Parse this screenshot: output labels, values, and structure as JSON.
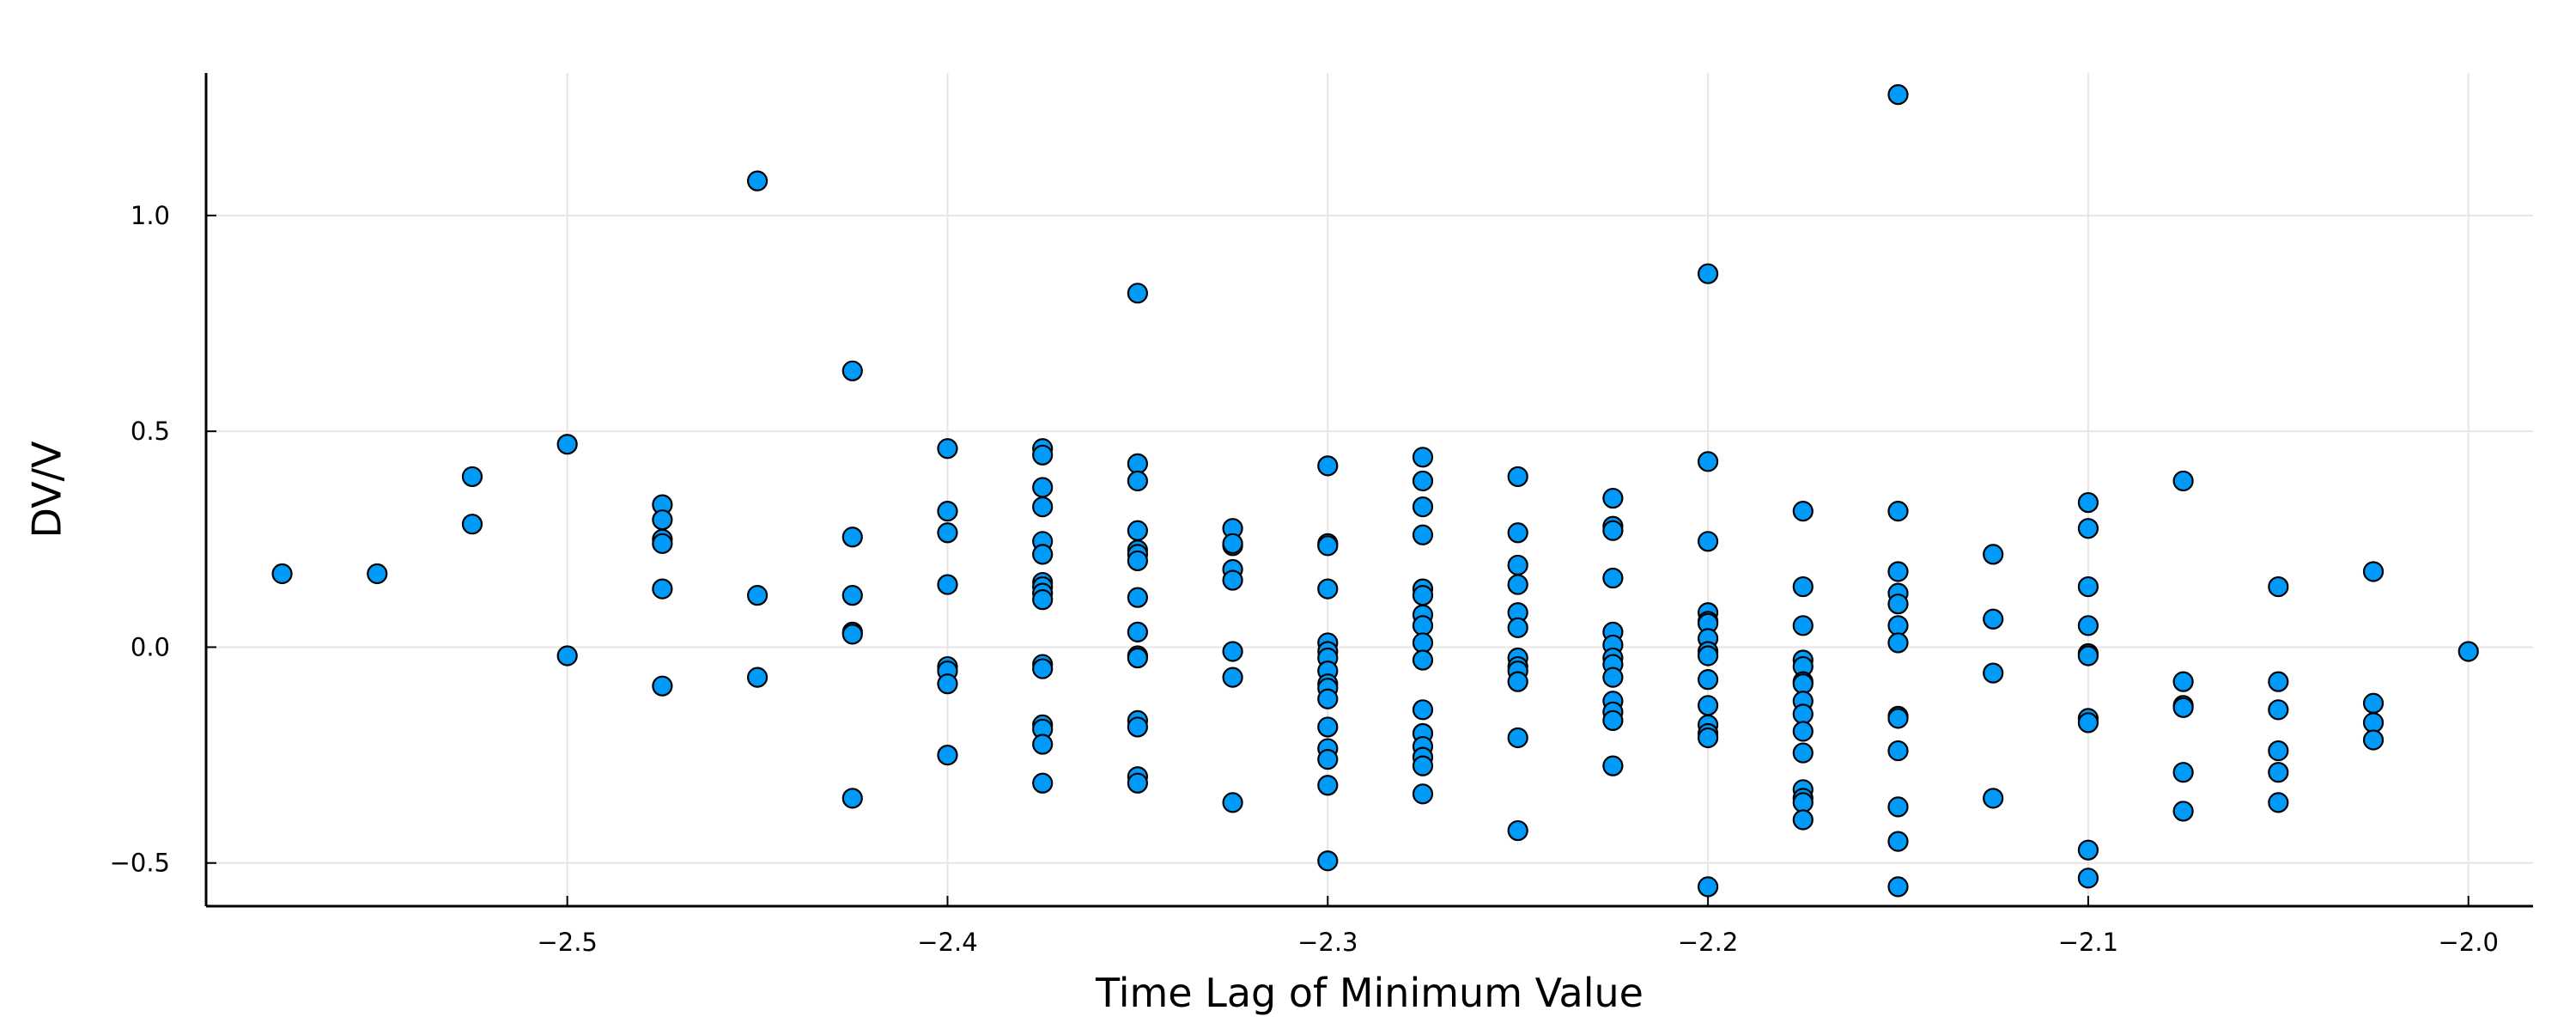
{
  "chart_data": {
    "type": "scatter",
    "title": "",
    "xlabel": "Time Lag of Minimum Value",
    "ylabel": "DV/V",
    "xlim": [
      -2.595,
      -1.983
    ],
    "ylim": [
      -0.6,
      1.33
    ],
    "xticks": [
      -2.5,
      -2.4,
      -2.3,
      -2.2,
      -2.1,
      -2.0
    ],
    "xtick_labels": [
      "−2.5",
      "−2.4",
      "−2.3",
      "−2.2",
      "−2.1",
      "−2.0"
    ],
    "yticks": [
      -0.5,
      0.0,
      0.5,
      1.0
    ],
    "ytick_labels": [
      "−0.5",
      "0.0",
      "0.5",
      "1.0"
    ],
    "grid": true,
    "legend": "none",
    "marker_color": "#009af9",
    "series": [
      {
        "points": [
          [
            -2.575,
            0.17
          ],
          [
            -2.55,
            0.17
          ],
          [
            -2.525,
            0.395
          ],
          [
            -2.525,
            0.285
          ],
          [
            -2.5,
            0.47
          ],
          [
            -2.5,
            -0.02
          ],
          [
            -2.475,
            0.33
          ],
          [
            -2.475,
            0.295
          ],
          [
            -2.475,
            0.25
          ],
          [
            -2.475,
            0.24
          ],
          [
            -2.475,
            0.135
          ],
          [
            -2.475,
            -0.09
          ],
          [
            -2.45,
            1.08
          ],
          [
            -2.45,
            0.12
          ],
          [
            -2.45,
            -0.07
          ],
          [
            -2.425,
            0.64
          ],
          [
            -2.425,
            0.255
          ],
          [
            -2.425,
            0.12
          ],
          [
            -2.425,
            0.035
          ],
          [
            -2.425,
            0.03
          ],
          [
            -2.425,
            -0.35
          ],
          [
            -2.4,
            0.46
          ],
          [
            -2.4,
            0.315
          ],
          [
            -2.4,
            0.265
          ],
          [
            -2.4,
            0.145
          ],
          [
            -2.4,
            -0.045
          ],
          [
            -2.4,
            -0.055
          ],
          [
            -2.4,
            -0.085
          ],
          [
            -2.4,
            -0.25
          ],
          [
            -2.375,
            0.46
          ],
          [
            -2.375,
            0.445
          ],
          [
            -2.375,
            0.37
          ],
          [
            -2.375,
            0.325
          ],
          [
            -2.375,
            0.245
          ],
          [
            -2.375,
            0.215
          ],
          [
            -2.375,
            0.15
          ],
          [
            -2.375,
            0.14
          ],
          [
            -2.375,
            0.125
          ],
          [
            -2.375,
            0.11
          ],
          [
            -2.375,
            -0.04
          ],
          [
            -2.375,
            -0.05
          ],
          [
            -2.375,
            -0.18
          ],
          [
            -2.375,
            -0.19
          ],
          [
            -2.375,
            -0.225
          ],
          [
            -2.375,
            -0.315
          ],
          [
            -2.35,
            0.82
          ],
          [
            -2.35,
            0.425
          ],
          [
            -2.35,
            0.385
          ],
          [
            -2.35,
            0.27
          ],
          [
            -2.35,
            0.225
          ],
          [
            -2.35,
            0.215
          ],
          [
            -2.35,
            0.2
          ],
          [
            -2.35,
            0.115
          ],
          [
            -2.35,
            0.035
          ],
          [
            -2.35,
            -0.02
          ],
          [
            -2.35,
            -0.025
          ],
          [
            -2.35,
            -0.17
          ],
          [
            -2.35,
            -0.185
          ],
          [
            -2.35,
            -0.3
          ],
          [
            -2.35,
            -0.315
          ],
          [
            -2.325,
            0.275
          ],
          [
            -2.325,
            0.235
          ],
          [
            -2.325,
            0.24
          ],
          [
            -2.325,
            0.18
          ],
          [
            -2.325,
            0.155
          ],
          [
            -2.325,
            -0.01
          ],
          [
            -2.325,
            -0.07
          ],
          [
            -2.325,
            -0.36
          ],
          [
            -2.3,
            0.42
          ],
          [
            -2.3,
            0.24
          ],
          [
            -2.3,
            0.235
          ],
          [
            -2.3,
            0.135
          ],
          [
            -2.3,
            0.01
          ],
          [
            -2.3,
            -0.01
          ],
          [
            -2.3,
            -0.025
          ],
          [
            -2.3,
            -0.055
          ],
          [
            -2.3,
            -0.085
          ],
          [
            -2.3,
            -0.095
          ],
          [
            -2.3,
            -0.12
          ],
          [
            -2.3,
            -0.185
          ],
          [
            -2.3,
            -0.235
          ],
          [
            -2.3,
            -0.26
          ],
          [
            -2.3,
            -0.32
          ],
          [
            -2.3,
            -0.495
          ],
          [
            -2.275,
            0.44
          ],
          [
            -2.275,
            0.385
          ],
          [
            -2.275,
            0.325
          ],
          [
            -2.275,
            0.26
          ],
          [
            -2.275,
            0.135
          ],
          [
            -2.275,
            0.12
          ],
          [
            -2.275,
            0.075
          ],
          [
            -2.275,
            0.05
          ],
          [
            -2.275,
            0.01
          ],
          [
            -2.275,
            -0.03
          ],
          [
            -2.275,
            -0.145
          ],
          [
            -2.275,
            -0.2
          ],
          [
            -2.275,
            -0.23
          ],
          [
            -2.275,
            -0.255
          ],
          [
            -2.275,
            -0.275
          ],
          [
            -2.275,
            -0.34
          ],
          [
            -2.25,
            0.395
          ],
          [
            -2.25,
            0.265
          ],
          [
            -2.25,
            0.19
          ],
          [
            -2.25,
            0.145
          ],
          [
            -2.25,
            0.08
          ],
          [
            -2.25,
            0.045
          ],
          [
            -2.25,
            -0.025
          ],
          [
            -2.25,
            -0.045
          ],
          [
            -2.25,
            -0.055
          ],
          [
            -2.25,
            -0.08
          ],
          [
            -2.25,
            -0.21
          ],
          [
            -2.25,
            -0.425
          ],
          [
            -2.225,
            0.345
          ],
          [
            -2.225,
            0.28
          ],
          [
            -2.225,
            0.27
          ],
          [
            -2.225,
            0.16
          ],
          [
            -2.225,
            0.035
          ],
          [
            -2.225,
            0.005
          ],
          [
            -2.225,
            -0.025
          ],
          [
            -2.225,
            -0.04
          ],
          [
            -2.225,
            -0.07
          ],
          [
            -2.225,
            -0.125
          ],
          [
            -2.225,
            -0.15
          ],
          [
            -2.225,
            -0.17
          ],
          [
            -2.225,
            -0.275
          ],
          [
            -2.2,
            0.865
          ],
          [
            -2.2,
            0.43
          ],
          [
            -2.2,
            0.245
          ],
          [
            -2.2,
            0.08
          ],
          [
            -2.2,
            0.06
          ],
          [
            -2.2,
            0.055
          ],
          [
            -2.2,
            0.02
          ],
          [
            -2.2,
            -0.01
          ],
          [
            -2.2,
            -0.02
          ],
          [
            -2.2,
            -0.075
          ],
          [
            -2.2,
            -0.135
          ],
          [
            -2.2,
            -0.18
          ],
          [
            -2.2,
            -0.2
          ],
          [
            -2.2,
            -0.21
          ],
          [
            -2.2,
            -0.555
          ],
          [
            -2.175,
            0.315
          ],
          [
            -2.175,
            0.14
          ],
          [
            -2.175,
            0.05
          ],
          [
            -2.175,
            -0.03
          ],
          [
            -2.175,
            -0.045
          ],
          [
            -2.175,
            -0.08
          ],
          [
            -2.175,
            -0.085
          ],
          [
            -2.175,
            -0.125
          ],
          [
            -2.175,
            -0.155
          ],
          [
            -2.175,
            -0.195
          ],
          [
            -2.175,
            -0.245
          ],
          [
            -2.175,
            -0.33
          ],
          [
            -2.175,
            -0.35
          ],
          [
            -2.175,
            -0.36
          ],
          [
            -2.175,
            -0.4
          ],
          [
            -2.15,
            1.28
          ],
          [
            -2.15,
            0.315
          ],
          [
            -2.15,
            0.175
          ],
          [
            -2.15,
            0.125
          ],
          [
            -2.15,
            0.1
          ],
          [
            -2.15,
            0.05
          ],
          [
            -2.15,
            0.01
          ],
          [
            -2.15,
            -0.16
          ],
          [
            -2.15,
            -0.165
          ],
          [
            -2.15,
            -0.24
          ],
          [
            -2.15,
            -0.37
          ],
          [
            -2.15,
            -0.45
          ],
          [
            -2.15,
            -0.555
          ],
          [
            -2.125,
            0.215
          ],
          [
            -2.125,
            0.065
          ],
          [
            -2.125,
            -0.06
          ],
          [
            -2.125,
            -0.35
          ],
          [
            -2.1,
            0.335
          ],
          [
            -2.1,
            0.275
          ],
          [
            -2.1,
            0.14
          ],
          [
            -2.1,
            0.05
          ],
          [
            -2.1,
            -0.015
          ],
          [
            -2.1,
            -0.02
          ],
          [
            -2.1,
            -0.165
          ],
          [
            -2.1,
            -0.175
          ],
          [
            -2.1,
            -0.47
          ],
          [
            -2.1,
            -0.535
          ],
          [
            -2.075,
            0.385
          ],
          [
            -2.075,
            -0.08
          ],
          [
            -2.075,
            -0.135
          ],
          [
            -2.075,
            -0.14
          ],
          [
            -2.075,
            -0.29
          ],
          [
            -2.075,
            -0.38
          ],
          [
            -2.05,
            0.14
          ],
          [
            -2.05,
            -0.08
          ],
          [
            -2.05,
            -0.145
          ],
          [
            -2.05,
            -0.24
          ],
          [
            -2.05,
            -0.29
          ],
          [
            -2.05,
            -0.36
          ],
          [
            -2.025,
            0.175
          ],
          [
            -2.025,
            -0.13
          ],
          [
            -2.025,
            -0.175
          ],
          [
            -2.025,
            -0.215
          ],
          [
            -2.0,
            -0.01
          ]
        ]
      }
    ]
  }
}
